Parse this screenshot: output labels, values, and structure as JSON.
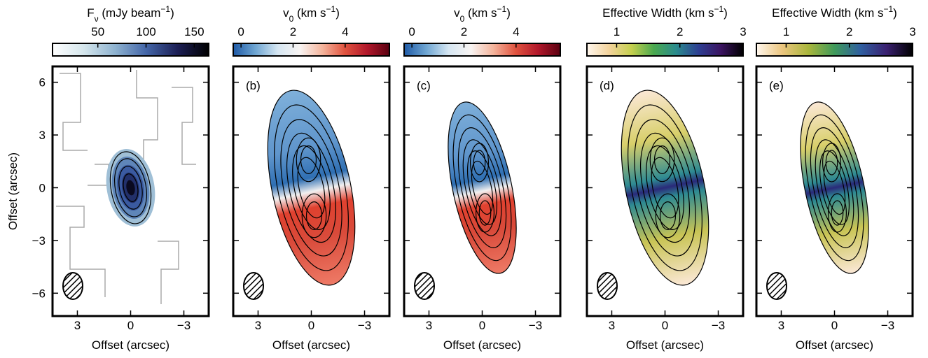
{
  "chart_data": [
    {
      "type": "map",
      "colorbar_label": [
        {
          "text": "F"
        },
        {
          "text": "ν",
          "shift": "sub"
        },
        {
          "text": " (mJy beam"
        },
        {
          "text": "−1",
          "shift": "super"
        },
        {
          "text": ")"
        }
      ],
      "clim": [
        3,
        165
      ],
      "cticks": [
        50,
        100,
        150
      ],
      "colormap": [
        "#ffffff",
        "#d5e6ec",
        "#8fb3d0",
        "#4466a8",
        "#1c1f55",
        "#000000"
      ],
      "xlabel": "Offset (arcsec)",
      "ylabel": "Offset (arcsec)",
      "xlim": [
        4.4,
        -4.4
      ],
      "xticks": [
        3,
        0,
        {
          "value": -3,
          "label": "−3"
        }
      ],
      "ylim": [
        -7.3,
        6.9
      ],
      "yticks": [
        6,
        3,
        0,
        {
          "value": -3,
          "label": "−3"
        },
        {
          "value": -6,
          "label": "−6"
        }
      ]
    },
    {
      "type": "map",
      "panel_label": "(b)",
      "colorbar_label": [
        {
          "text": "v"
        },
        {
          "text": "0",
          "shift": "sub"
        },
        {
          "text": " (km s"
        },
        {
          "text": "−1",
          "shift": "super"
        },
        {
          "text": ")"
        }
      ],
      "clim": [
        -0.3,
        5.7
      ],
      "cticks": [
        0,
        2,
        4
      ],
      "colormap": [
        "#1f5aa6",
        "#6fa6d2",
        "#d6e6f2",
        "#f8f4f2",
        "#f4b49c",
        "#e0533f",
        "#b2182b",
        "#5a0010"
      ],
      "xlabel": "Offset (arcsec)",
      "xlim": [
        4.4,
        -4.4
      ],
      "xticks": [
        3,
        0,
        {
          "value": -3,
          "label": "−3"
        }
      ],
      "ylim": [
        -7.3,
        6.9
      ],
      "yticks": [
        6,
        3,
        0,
        {
          "value": -3,
          "label": "−3"
        },
        {
          "value": -6,
          "label": "−6"
        }
      ]
    },
    {
      "type": "map",
      "panel_label": "(c)",
      "colorbar_label": [
        {
          "text": "v"
        },
        {
          "text": "0",
          "shift": "sub"
        },
        {
          "text": " (km s"
        },
        {
          "text": "−1",
          "shift": "super"
        },
        {
          "text": ")"
        }
      ],
      "clim": [
        -0.3,
        5.7
      ],
      "cticks": [
        0,
        2,
        4
      ],
      "colormap": [
        "#1f5aa6",
        "#6fa6d2",
        "#d6e6f2",
        "#f8f4f2",
        "#f4b49c",
        "#e0533f",
        "#b2182b",
        "#5a0010"
      ],
      "xlabel": "Offset (arcsec)",
      "xlim": [
        4.4,
        -4.4
      ],
      "xticks": [
        3,
        0,
        {
          "value": -3,
          "label": "−3"
        }
      ],
      "ylim": [
        -7.3,
        6.9
      ],
      "yticks": [
        6,
        3,
        0,
        {
          "value": -3,
          "label": "−3"
        },
        {
          "value": -6,
          "label": "−6"
        }
      ]
    },
    {
      "type": "map",
      "panel_label": "(d)",
      "colorbar_label": [
        {
          "text": "Effective Width (km s"
        },
        {
          "text": "−1",
          "shift": "super"
        },
        {
          "text": ")"
        }
      ],
      "clim": [
        0.53,
        3
      ],
      "cticks": [
        1,
        2,
        3
      ],
      "colormap": [
        "#fff7ee",
        "#f3d39c",
        "#c4cf4e",
        "#4aa94f",
        "#2a8b8d",
        "#2d3f92",
        "#3b1461",
        "#000000"
      ],
      "xlabel": "Offset (arcsec)",
      "xlim": [
        4.4,
        -4.4
      ],
      "xticks": [
        3,
        0,
        {
          "value": -3,
          "label": "−3"
        }
      ],
      "ylim": [
        -7.3,
        6.9
      ],
      "yticks": [
        6,
        3,
        0,
        {
          "value": -3,
          "label": "−3"
        },
        {
          "value": -6,
          "label": "−6"
        }
      ]
    },
    {
      "type": "map",
      "panel_label": "(e)",
      "colorbar_label": [
        {
          "text": "Effective Width (km s"
        },
        {
          "text": "−1",
          "shift": "super"
        },
        {
          "text": ")"
        }
      ],
      "clim": [
        0.53,
        3
      ],
      "cticks": [
        1,
        2,
        3
      ],
      "colormap": [
        "#fff7ee",
        "#ebc57e",
        "#a9b63c",
        "#3f9a5a",
        "#2f5fa0",
        "#3a2070",
        "#000000"
      ],
      "xlabel": "Offset (arcsec)",
      "xlim": [
        4.4,
        -4.4
      ],
      "xticks": [
        3,
        0,
        {
          "value": -3,
          "label": "−3"
        }
      ],
      "ylim": [
        -7.3,
        6.9
      ],
      "yticks": [
        6,
        3,
        0,
        {
          "value": -3,
          "label": "−3"
        },
        {
          "value": -6,
          "label": "−6"
        }
      ]
    }
  ]
}
